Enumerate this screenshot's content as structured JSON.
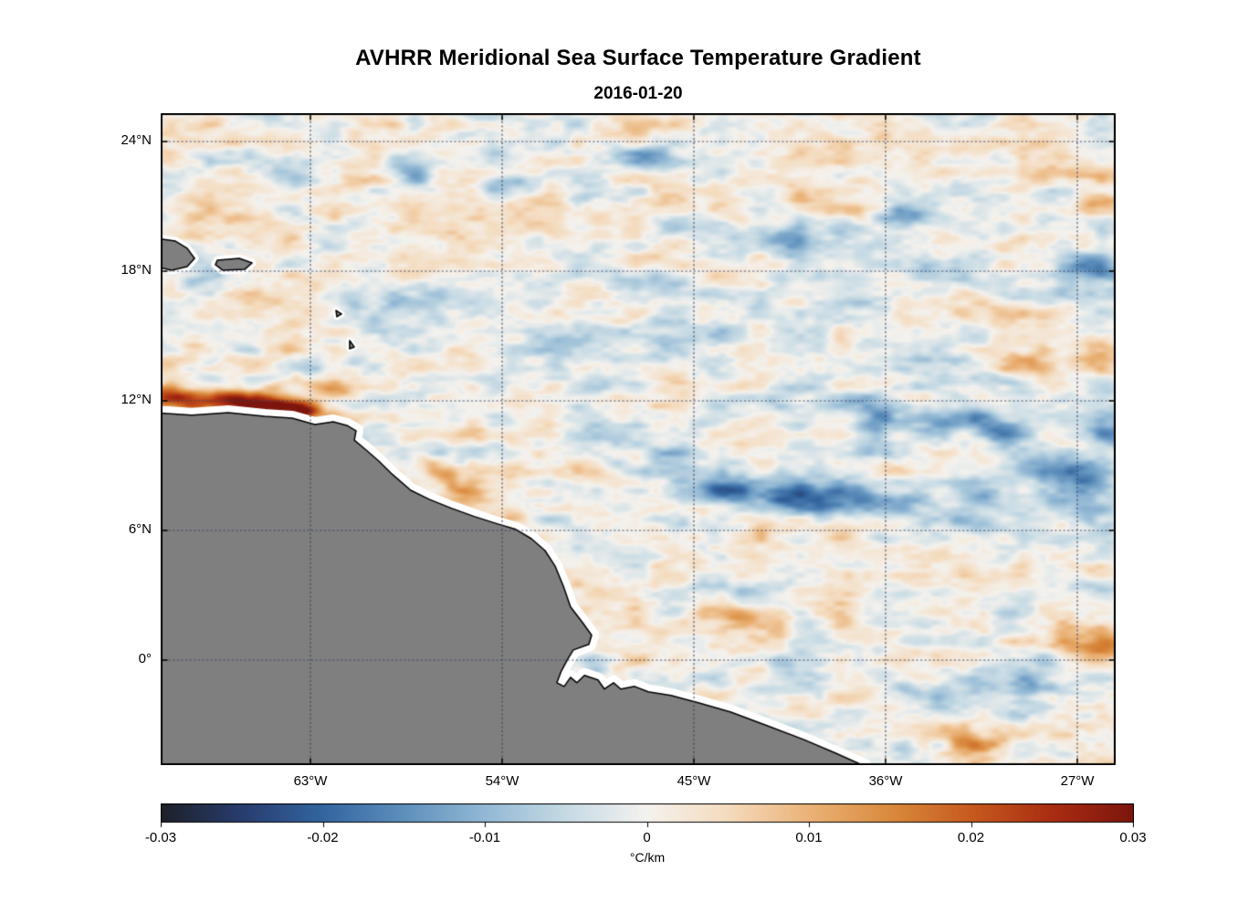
{
  "header": {
    "title": "AVHRR Meridional Sea Surface Temperature Gradient",
    "subtitle": "2016-01-20"
  },
  "chart_data": {
    "type": "heatmap",
    "title": "AVHRR Meridional Sea Surface Temperature Gradient",
    "date": "2016-01-20",
    "units": "°C/km",
    "lon_range": [
      -70.03,
      -25.2
    ],
    "lat_range": [
      -4.86,
      25.31
    ],
    "x_ticks": [
      {
        "lon": -63,
        "label": "63°W"
      },
      {
        "lon": -54,
        "label": "54°W"
      },
      {
        "lon": -45,
        "label": "45°W"
      },
      {
        "lon": -36,
        "label": "36°W"
      },
      {
        "lon": -27,
        "label": "27°W"
      }
    ],
    "y_ticks": [
      {
        "lat": 24,
        "label": "24°N"
      },
      {
        "lat": 18,
        "label": "18°N"
      },
      {
        "lat": 12,
        "label": "12°N"
      },
      {
        "lat": 6,
        "label": "6°N"
      },
      {
        "lat": 0,
        "label": "0°"
      }
    ],
    "grid": {
      "visible": true,
      "style": "dotted",
      "color": "rgba(55,65,95,0.9)"
    },
    "colorbar": {
      "min": -0.03,
      "max": 0.03,
      "tick_labels": [
        "-0.03",
        "-0.02",
        "-0.01",
        "0",
        "0.01",
        "0.02",
        "0.03"
      ],
      "label": "°C/km",
      "orientation": "horizontal"
    },
    "colormap": {
      "name": "balance-diverging-blue-white-red",
      "stops": [
        [
          0.0,
          "#1e2028"
        ],
        [
          0.083,
          "#283c6e"
        ],
        [
          0.167,
          "#33659f"
        ],
        [
          0.25,
          "#5e8fbc"
        ],
        [
          0.333,
          "#92b8d4"
        ],
        [
          0.417,
          "#c6dae4"
        ],
        [
          0.5,
          "#f4f2ee"
        ],
        [
          0.583,
          "#f4dbbe"
        ],
        [
          0.667,
          "#eab277"
        ],
        [
          0.75,
          "#d98a3d"
        ],
        [
          0.833,
          "#c65a1e"
        ],
        [
          0.917,
          "#a92c12"
        ],
        [
          1.0,
          "#7c150d"
        ]
      ]
    },
    "field": {
      "description": "Meridional SST gradient field: pale mottled background with coherent positive (orange/red) and negative (blue) anomaly patches",
      "base_noise": [
        {
          "fx": 0.5,
          "fy": 1.25,
          "amp": 0.005,
          "seed": 11
        },
        {
          "fx": 1.05,
          "fy": 2.3,
          "amp": 0.0036,
          "seed": 29
        },
        {
          "fx": 2.2,
          "fy": 4.6,
          "amp": 0.002,
          "seed": 47
        },
        {
          "fx": 0.22,
          "fy": 0.5,
          "amp": 0.0028,
          "seed": 83
        }
      ],
      "features_schema": [
        "lon",
        "lat",
        "sigma_lon_deg",
        "sigma_lat_deg",
        "rotation_deg",
        "amplitude_C_per_km"
      ],
      "features": [
        [
          -67.8,
          11.95,
          1.9,
          0.45,
          0,
          0.016
        ],
        [
          -69.7,
          12.2,
          0.9,
          0.4,
          0,
          0.013
        ],
        [
          -65.6,
          11.85,
          1.5,
          0.42,
          -5,
          0.024
        ],
        [
          -64.3,
          11.45,
          0.85,
          0.32,
          0,
          0.03
        ],
        [
          -63.2,
          11.65,
          0.6,
          0.28,
          0,
          0.016
        ],
        [
          -61.9,
          12.35,
          0.5,
          0.28,
          0,
          0.012
        ],
        [
          -56.4,
          8.3,
          1.6,
          0.38,
          -39,
          0.013
        ],
        [
          -53.2,
          6.6,
          0.9,
          0.3,
          -25,
          0.009
        ],
        [
          -42.4,
          1.8,
          1.7,
          0.5,
          -8,
          0.012
        ],
        [
          -26.1,
          0.6,
          1.1,
          0.6,
          0,
          0.019
        ],
        [
          -40.0,
          7.5,
          2.9,
          0.55,
          -4,
          -0.018
        ],
        [
          -43.6,
          7.9,
          1.2,
          0.4,
          0,
          -0.011
        ],
        [
          -36.4,
          10.8,
          0.6,
          0.9,
          0,
          -0.013
        ],
        [
          -33.8,
          11.1,
          1.0,
          0.5,
          0,
          -0.014
        ],
        [
          -30.9,
          10.7,
          1.1,
          0.5,
          -15,
          -0.013
        ],
        [
          -27.4,
          8.6,
          1.5,
          0.75,
          -20,
          -0.015
        ],
        [
          -25.6,
          10.7,
          1.0,
          0.6,
          0,
          -0.013
        ],
        [
          -31.3,
          7.5,
          0.9,
          0.45,
          0,
          -0.012
        ],
        [
          -26.4,
          18.1,
          1.3,
          0.45,
          -10,
          -0.015
        ],
        [
          -46.7,
          23.2,
          0.95,
          0.4,
          0,
          -0.016
        ],
        [
          -58.1,
          22.5,
          1.0,
          0.45,
          -15,
          -0.011
        ],
        [
          -40.9,
          19.5,
          1.0,
          0.4,
          -10,
          -0.011
        ],
        [
          -35.2,
          20.5,
          0.6,
          0.35,
          0,
          -0.012
        ],
        [
          -54.2,
          21.9,
          1.3,
          0.35,
          0,
          -0.01
        ],
        [
          -47.0,
          17.6,
          1.5,
          0.4,
          -5,
          -0.008
        ],
        [
          -38.8,
          21.0,
          1.3,
          0.35,
          -5,
          0.008
        ],
        [
          -25.7,
          21.2,
          0.8,
          0.35,
          0,
          0.01
        ],
        [
          -29.6,
          13.7,
          1.0,
          0.4,
          -10,
          0.009
        ],
        [
          -28.1,
          4.8,
          1.2,
          0.5,
          0,
          0.008
        ],
        [
          -31.9,
          -3.9,
          1.2,
          0.4,
          0,
          0.01
        ],
        [
          -29.1,
          -0.9,
          1.1,
          0.5,
          -10,
          -0.011
        ],
        [
          -34.3,
          -1.5,
          1.0,
          0.45,
          0,
          -0.01
        ]
      ]
    },
    "land": {
      "fill": "#7f7f7f",
      "outline": "#000000",
      "coastal_halo": "#ffffff",
      "polygons": {
        "mainland": [
          [
            -70.4,
            11.45
          ],
          [
            -68.57,
            11.33
          ],
          [
            -66.86,
            11.45
          ],
          [
            -65.14,
            11.28
          ],
          [
            -63.86,
            11.2
          ],
          [
            -62.79,
            10.9
          ],
          [
            -61.93,
            11.03
          ],
          [
            -61.29,
            10.86
          ],
          [
            -60.86,
            10.61
          ],
          [
            -60.94,
            10.18
          ],
          [
            -60.43,
            9.76
          ],
          [
            -59.79,
            9.21
          ],
          [
            -59.14,
            8.58
          ],
          [
            -58.29,
            7.86
          ],
          [
            -57.43,
            7.44
          ],
          [
            -56.36,
            7.02
          ],
          [
            -55.29,
            6.64
          ],
          [
            -54.21,
            6.3
          ],
          [
            -53.36,
            6.05
          ],
          [
            -52.63,
            5.62
          ],
          [
            -51.99,
            5.07
          ],
          [
            -51.52,
            4.36
          ],
          [
            -51.13,
            3.43
          ],
          [
            -50.79,
            2.46
          ],
          [
            -50.23,
            1.74
          ],
          [
            -49.8,
            1.15
          ],
          [
            -49.93,
            0.73
          ],
          [
            -50.66,
            0.47
          ],
          [
            -50.92,
            0.05
          ],
          [
            -51.22,
            -0.5
          ],
          [
            -51.43,
            -1.05
          ],
          [
            -51.09,
            -1.22
          ],
          [
            -50.79,
            -0.8
          ],
          [
            -50.49,
            -1.05
          ],
          [
            -50.14,
            -0.71
          ],
          [
            -49.5,
            -0.92
          ],
          [
            -49.2,
            -1.34
          ],
          [
            -48.77,
            -1.05
          ],
          [
            -48.43,
            -1.34
          ],
          [
            -47.78,
            -1.22
          ],
          [
            -47.14,
            -1.47
          ],
          [
            -46.07,
            -1.64
          ],
          [
            -44.79,
            -1.98
          ],
          [
            -43.29,
            -2.4
          ],
          [
            -41.57,
            -3.03
          ],
          [
            -39.86,
            -3.67
          ],
          [
            -38.36,
            -4.3
          ],
          [
            -37.0,
            -4.9
          ],
          [
            -36.8,
            -5.4
          ],
          [
            -70.4,
            -5.4
          ]
        ],
        "hispaniola": [
          [
            -70.4,
            19.55
          ],
          [
            -69.34,
            19.39
          ],
          [
            -68.79,
            19.06
          ],
          [
            -68.44,
            18.59
          ],
          [
            -68.79,
            18.21
          ],
          [
            -69.51,
            18.04
          ],
          [
            -70.4,
            18.25
          ]
        ],
        "puerto_rico": [
          [
            -67.37,
            18.51
          ],
          [
            -66.34,
            18.59
          ],
          [
            -65.74,
            18.38
          ],
          [
            -66.09,
            18.08
          ],
          [
            -67.11,
            18.04
          ],
          [
            -67.46,
            18.3
          ]
        ],
        "guadeloupe": [
          [
            -61.8,
            16.18
          ],
          [
            -61.54,
            16.02
          ],
          [
            -61.76,
            15.89
          ]
        ],
        "martinique": [
          [
            -61.16,
            14.79
          ],
          [
            -60.94,
            14.49
          ],
          [
            -61.16,
            14.41
          ]
        ]
      }
    }
  }
}
